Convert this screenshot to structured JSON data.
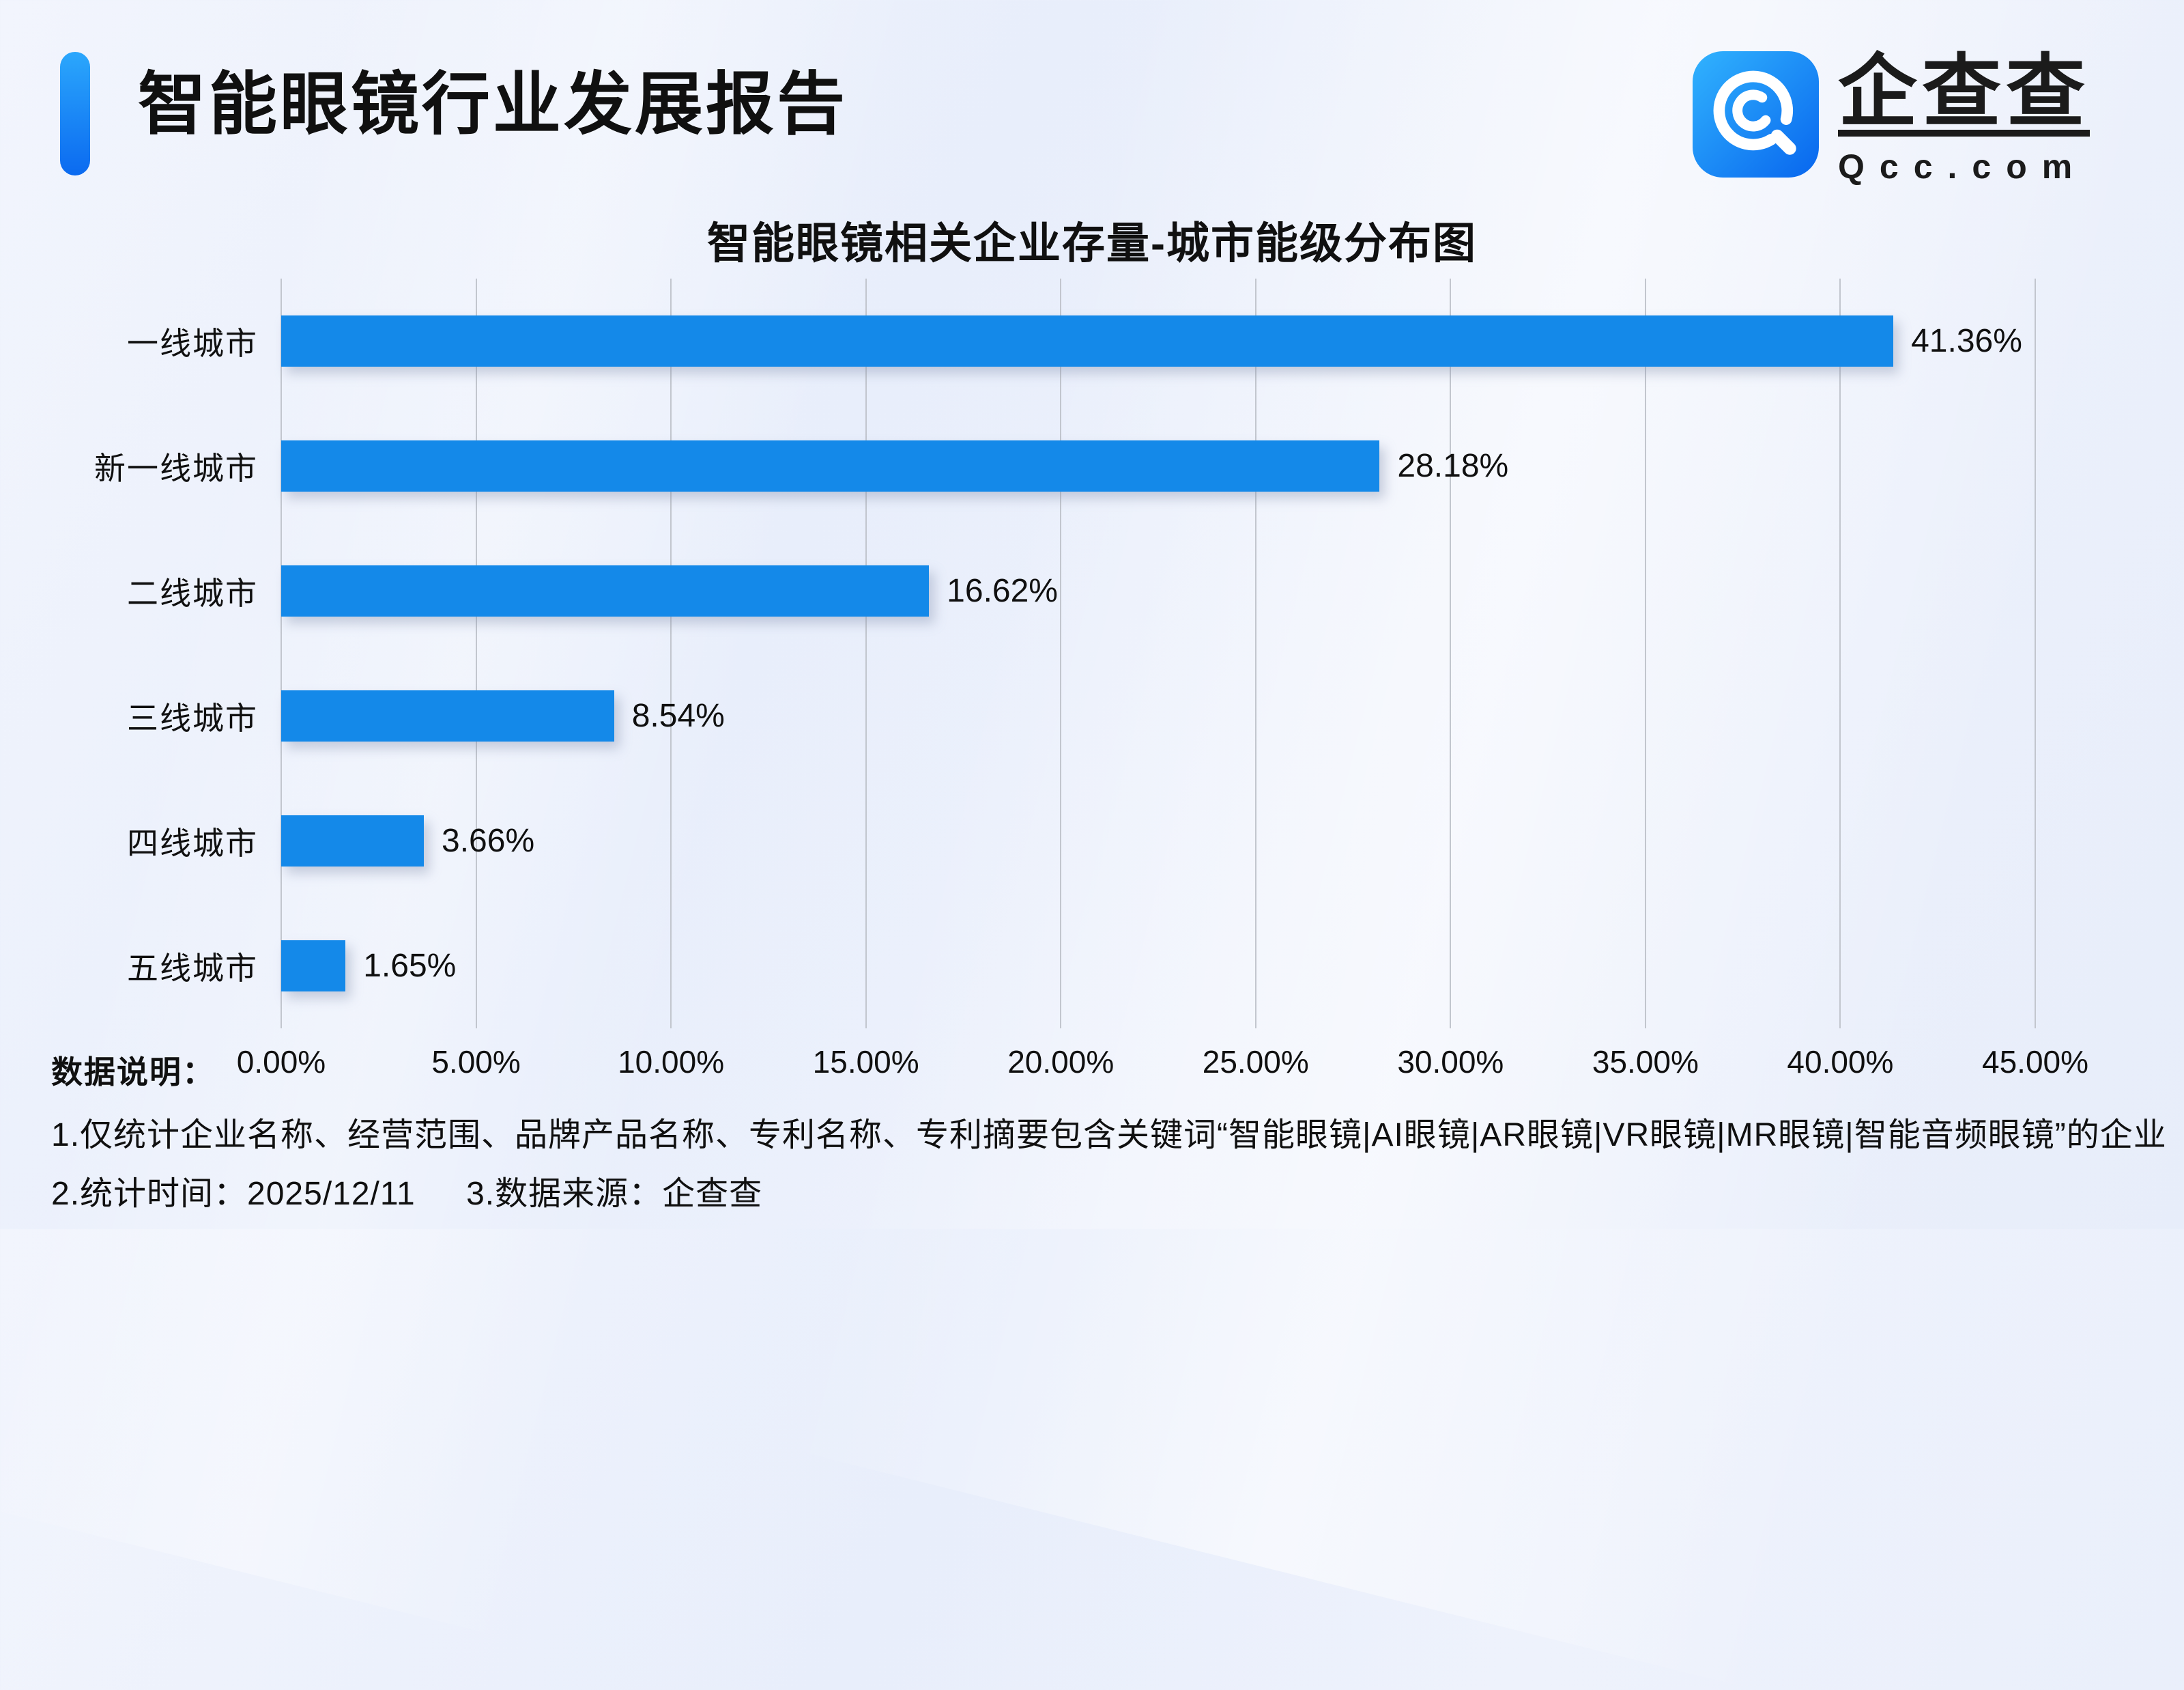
{
  "theme": {
    "bar-color": "#1489e9",
    "grid-color": "#c2c6ce",
    "text-color": "#101010",
    "accent-top": "#2ba7fc",
    "accent-bottom": "#0b6af0"
  },
  "header": {
    "report_title": "智能眼镜行业发展报告",
    "logo": {
      "brand": "企查查",
      "domain": "Qcc.com",
      "icon": "qcc-magnifier-icon"
    }
  },
  "chart_data": {
    "type": "bar",
    "orientation": "horizontal",
    "title": "智能眼镜相关企业存量-城市能级分布图",
    "categories": [
      "一线城市",
      "新一线城市",
      "二线城市",
      "三线城市",
      "四线城市",
      "五线城市"
    ],
    "values": [
      41.36,
      28.18,
      16.62,
      8.54,
      3.66,
      1.65
    ],
    "value_labels": [
      "41.36%",
      "28.18%",
      "16.62%",
      "8.54%",
      "3.66%",
      "1.65%"
    ],
    "x_ticks": [
      "0.00%",
      "5.00%",
      "10.00%",
      "15.00%",
      "20.00%",
      "25.00%",
      "30.00%",
      "35.00%",
      "40.00%",
      "45.00%"
    ],
    "xlim": [
      0,
      45
    ],
    "xlabel": "",
    "ylabel": "",
    "grid": true,
    "legend": false,
    "bar_color": "#1489e9"
  },
  "footer": {
    "note_label": "数据说明：",
    "note1": "1.仅统计企业名称、经营范围、品牌产品名称、专利名称、专利摘要包含关键词“智能眼镜|AI眼镜|AR眼镜|VR眼镜|MR眼镜|智能音频眼镜”的企业",
    "note2_part1": "2.统计时间：2025/12/11",
    "note2_part2": "3.数据来源：企查查"
  }
}
